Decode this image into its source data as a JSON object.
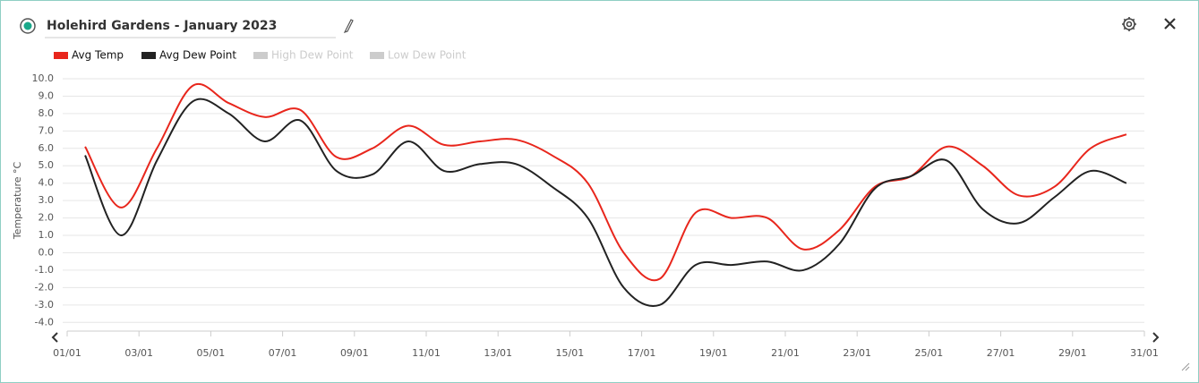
{
  "header": {
    "title": "Holehird Gardens - January 2023"
  },
  "chart_data": {
    "type": "line",
    "y_label": "Temperature °C",
    "x": [
      1.5,
      2.5,
      3.5,
      4.5,
      5.5,
      6.5,
      7.5,
      8.5,
      9.5,
      10.5,
      11.5,
      12.5,
      13.5,
      14.5,
      15.5,
      16.5,
      17.5,
      18.5,
      19.5,
      20.5,
      21.5,
      22.5,
      23.5,
      24.5,
      25.5,
      26.5,
      27.5,
      28.5,
      29.5,
      30.5
    ],
    "series": [
      {
        "name": "Avg Temp",
        "color": "#e8261c",
        "visible": true,
        "values": [
          6.1,
          2.6,
          6.0,
          9.6,
          8.6,
          7.8,
          8.2,
          5.5,
          6.0,
          7.3,
          6.2,
          6.4,
          6.5,
          5.6,
          4.0,
          0.0,
          -1.5,
          2.3,
          2.0,
          2.0,
          0.2,
          1.3,
          3.8,
          4.4,
          6.1,
          5.0,
          3.3,
          3.8,
          6.0,
          6.8
        ]
      },
      {
        "name": "Avg Dew Point",
        "color": "#222222",
        "visible": true,
        "values": [
          5.6,
          1.0,
          5.3,
          8.7,
          8.0,
          6.4,
          7.6,
          4.7,
          4.5,
          6.4,
          4.7,
          5.1,
          5.1,
          3.8,
          2.0,
          -2.0,
          -3.0,
          -0.7,
          -0.7,
          -0.5,
          -1.0,
          0.5,
          3.7,
          4.4,
          5.3,
          2.5,
          1.7,
          3.2,
          4.7,
          4.0
        ]
      },
      {
        "name": "High Dew Point",
        "color": "#cccccc",
        "visible": false
      },
      {
        "name": "Low Dew Point",
        "color": "#cccccc",
        "visible": false
      }
    ],
    "xlim": [
      1,
      31
    ],
    "xticks": [
      {
        "value": 1,
        "label": "01/01"
      },
      {
        "value": 3,
        "label": "03/01"
      },
      {
        "value": 5,
        "label": "05/01"
      },
      {
        "value": 7,
        "label": "07/01"
      },
      {
        "value": 9,
        "label": "09/01"
      },
      {
        "value": 11,
        "label": "11/01"
      },
      {
        "value": 13,
        "label": "13/01"
      },
      {
        "value": 15,
        "label": "15/01"
      },
      {
        "value": 17,
        "label": "17/01"
      },
      {
        "value": 19,
        "label": "19/01"
      },
      {
        "value": 21,
        "label": "21/01"
      },
      {
        "value": 23,
        "label": "23/01"
      },
      {
        "value": 25,
        "label": "25/01"
      },
      {
        "value": 27,
        "label": "27/01"
      },
      {
        "value": 29,
        "label": "29/01"
      },
      {
        "value": 31,
        "label": "31/01"
      }
    ],
    "ylim": [
      -4.5,
      10
    ],
    "yticks": [
      {
        "value": -4,
        "label": "-4.0"
      },
      {
        "value": -3,
        "label": "-3.0"
      },
      {
        "value": -2,
        "label": "-2.0"
      },
      {
        "value": -1,
        "label": "-1.0"
      },
      {
        "value": 0,
        "label": "0.0"
      },
      {
        "value": 1,
        "label": "1.0"
      },
      {
        "value": 2,
        "label": "2.0"
      },
      {
        "value": 3,
        "label": "3.0"
      },
      {
        "value": 4,
        "label": "4.0"
      },
      {
        "value": 5,
        "label": "5.0"
      },
      {
        "value": 6,
        "label": "6.0"
      },
      {
        "value": 7,
        "label": "7.0"
      },
      {
        "value": 8,
        "label": "8.0"
      },
      {
        "value": 9,
        "label": "9.0"
      },
      {
        "value": 10,
        "label": "10.0"
      }
    ],
    "grid": true
  }
}
